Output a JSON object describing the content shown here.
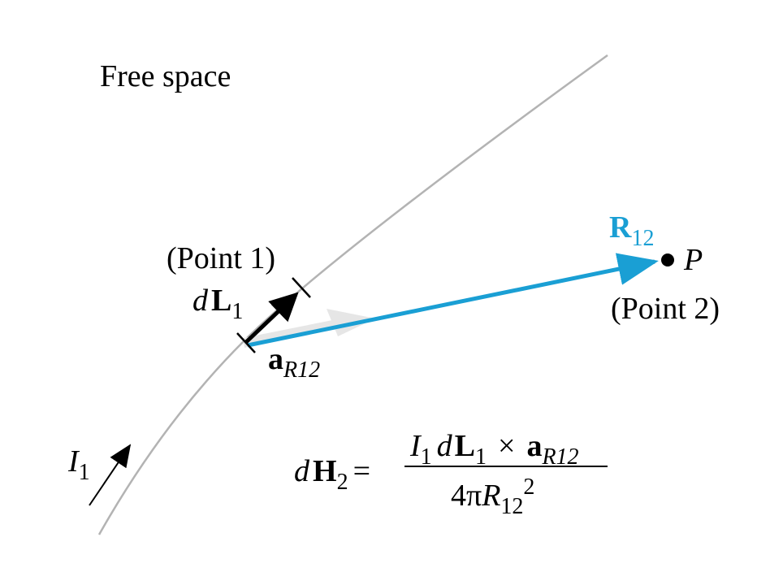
{
  "diagram": {
    "region_label": "Free space",
    "point1_label": "(Point 1)",
    "point2_label": "(Point 2)",
    "point_p": "P",
    "element_dL": {
      "d": "d",
      "L": "L",
      "sub": "1"
    },
    "unit_vector": {
      "a": "a",
      "sub": "R12"
    },
    "vector_R": {
      "R": "R",
      "sub": "12"
    },
    "current": {
      "I": "I",
      "sub": "1"
    },
    "equation": {
      "lhs_d": "d",
      "lhs_H": "H",
      "lhs_sub": "2",
      "equals": "=",
      "num_I": "I",
      "num_I_sub": "1",
      "num_d": "d",
      "num_L": "L",
      "num_L_sub": "1",
      "times": "×",
      "num_a": "a",
      "num_a_sub": "R12",
      "den_4pi": "4π",
      "den_R": "R",
      "den_R_sub": "12",
      "den_exp": "2"
    },
    "colors": {
      "wire": "#b3b3b3",
      "vector_R": "#1a9fd4",
      "unit_vector": "#e6e6e6",
      "dL": "#000000"
    }
  }
}
